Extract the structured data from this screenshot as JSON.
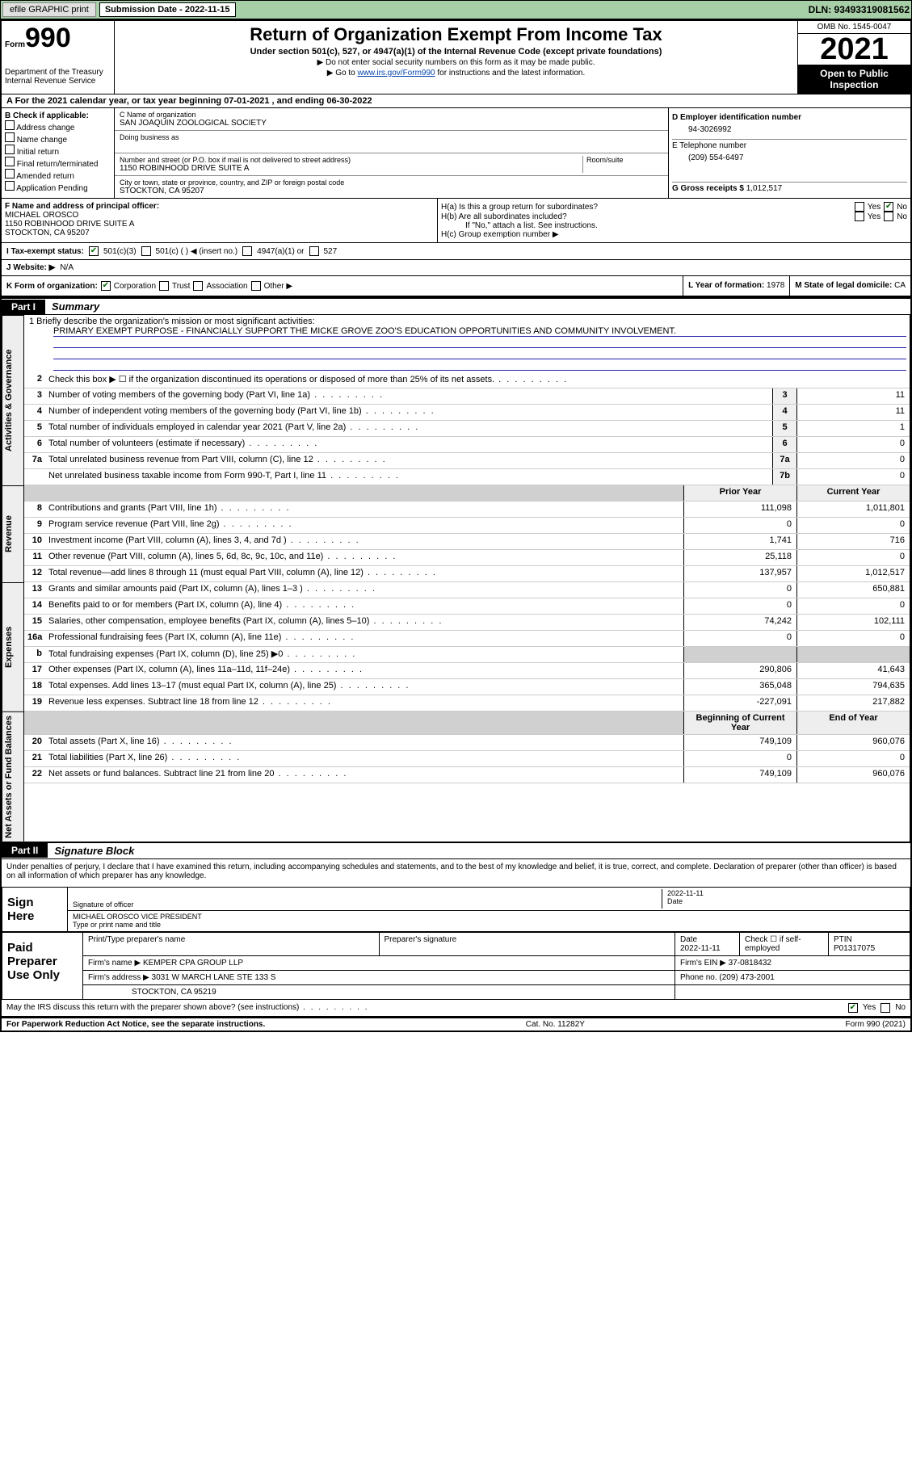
{
  "topbar": {
    "efile": "efile GRAPHIC print",
    "submission_label": "Submission Date - 2022-11-15",
    "dln_label": "DLN: 93493319081562"
  },
  "header": {
    "form_prefix": "Form",
    "form_number": "990",
    "dept": "Department of the Treasury",
    "irs": "Internal Revenue Service",
    "title": "Return of Organization Exempt From Income Tax",
    "subtitle": "Under section 501(c), 527, or 4947(a)(1) of the Internal Revenue Code (except private foundations)",
    "note1": "▶ Do not enter social security numbers on this form as it may be made public.",
    "note2_pre": "▶ Go to ",
    "note2_link": "www.irs.gov/Form990",
    "note2_post": " for instructions and the latest information.",
    "omb": "OMB No. 1545-0047",
    "year": "2021",
    "inspect": "Open to Public Inspection"
  },
  "period": "A For the 2021 calendar year, or tax year beginning 07-01-2021   , and ending 06-30-2022",
  "section_b": {
    "title": "B Check if applicable:",
    "opts": [
      "Address change",
      "Name change",
      "Initial return",
      "Final return/terminated",
      "Amended return",
      "Application Pending"
    ],
    "c_label": "C Name of organization",
    "org_name": "SAN JOAQUIN ZOOLOGICAL SOCIETY",
    "dba_label": "Doing business as",
    "addr_label": "Number and street (or P.O. box if mail is not delivered to street address)",
    "room_label": "Room/suite",
    "addr": "1150 ROBINHOOD DRIVE SUITE A",
    "city_label": "City or town, state or province, country, and ZIP or foreign postal code",
    "city": "STOCKTON, CA  95207",
    "d_label": "D Employer identification number",
    "ein": "94-3026992",
    "e_label": "E Telephone number",
    "phone": "(209) 554-6497",
    "g_label": "G Gross receipts $",
    "gross": "1,012,517"
  },
  "section_f": {
    "f_label": "F  Name and address of principal officer:",
    "officer_name": "MICHAEL OROSCO",
    "officer_addr1": "1150 ROBINHOOD DRIVE SUITE A",
    "officer_addr2": "STOCKTON, CA  95207",
    "ha": "H(a)  Is this a group return for subordinates?",
    "hb": "H(b)  Are all subordinates included?",
    "hb_note": "If \"No,\" attach a list. See instructions.",
    "hc": "H(c)  Group exemption number ▶",
    "yes": "Yes",
    "no": "No"
  },
  "row_i": {
    "label": "I   Tax-exempt status:",
    "opt1": "501(c)(3)",
    "opt2": "501(c) (   ) ◀ (insert no.)",
    "opt3": "4947(a)(1) or",
    "opt4": "527"
  },
  "row_j": {
    "label": "J   Website: ▶",
    "value": "N/A"
  },
  "row_k": {
    "label": "K Form of organization:",
    "o1": "Corporation",
    "o2": "Trust",
    "o3": "Association",
    "o4": "Other ▶",
    "l_label": "L Year of formation: ",
    "l_val": "1978",
    "m_label": "M State of legal domicile: ",
    "m_val": "CA"
  },
  "part1": {
    "tag": "Part I",
    "label": "Summary"
  },
  "mission": {
    "prompt": "1   Briefly describe the organization's mission or most significant activities:",
    "text": "PRIMARY EXEMPT PURPOSE - FINANCIALLY SUPPORT THE MICKE GROVE ZOO'S EDUCATION OPPORTUNITIES AND COMMUNITY INVOLVEMENT."
  },
  "gov_lines": [
    {
      "n": "2",
      "d": "Check this box ▶ ☐  if the organization discontinued its operations or disposed of more than 25% of its net assets.",
      "k": "",
      "v": ""
    },
    {
      "n": "3",
      "d": "Number of voting members of the governing body (Part VI, line 1a)",
      "k": "3",
      "v": "11"
    },
    {
      "n": "4",
      "d": "Number of independent voting members of the governing body (Part VI, line 1b)",
      "k": "4",
      "v": "11"
    },
    {
      "n": "5",
      "d": "Total number of individuals employed in calendar year 2021 (Part V, line 2a)",
      "k": "5",
      "v": "1"
    },
    {
      "n": "6",
      "d": "Total number of volunteers (estimate if necessary)",
      "k": "6",
      "v": "0"
    },
    {
      "n": "7a",
      "d": "Total unrelated business revenue from Part VIII, column (C), line 12",
      "k": "7a",
      "v": "0"
    },
    {
      "n": "",
      "d": "Net unrelated business taxable income from Form 990-T, Part I, line 11",
      "k": "7b",
      "v": "0"
    }
  ],
  "pc_header": {
    "prior": "Prior Year",
    "curr": "Current Year"
  },
  "rev_lines": [
    {
      "n": "8",
      "d": "Contributions and grants (Part VIII, line 1h)",
      "p": "111,098",
      "c": "1,011,801"
    },
    {
      "n": "9",
      "d": "Program service revenue (Part VIII, line 2g)",
      "p": "0",
      "c": "0"
    },
    {
      "n": "10",
      "d": "Investment income (Part VIII, column (A), lines 3, 4, and 7d )",
      "p": "1,741",
      "c": "716"
    },
    {
      "n": "11",
      "d": "Other revenue (Part VIII, column (A), lines 5, 6d, 8c, 9c, 10c, and 11e)",
      "p": "25,118",
      "c": "0"
    },
    {
      "n": "12",
      "d": "Total revenue—add lines 8 through 11 (must equal Part VIII, column (A), line 12)",
      "p": "137,957",
      "c": "1,012,517"
    }
  ],
  "exp_lines": [
    {
      "n": "13",
      "d": "Grants and similar amounts paid (Part IX, column (A), lines 1–3 )",
      "p": "0",
      "c": "650,881"
    },
    {
      "n": "14",
      "d": "Benefits paid to or for members (Part IX, column (A), line 4)",
      "p": "0",
      "c": "0"
    },
    {
      "n": "15",
      "d": "Salaries, other compensation, employee benefits (Part IX, column (A), lines 5–10)",
      "p": "74,242",
      "c": "102,111"
    },
    {
      "n": "16a",
      "d": "Professional fundraising fees (Part IX, column (A), line 11e)",
      "p": "0",
      "c": "0"
    },
    {
      "n": "b",
      "d": "Total fundraising expenses (Part IX, column (D), line 25) ▶0",
      "p": "",
      "c": "",
      "grey": true
    },
    {
      "n": "17",
      "d": "Other expenses (Part IX, column (A), lines 11a–11d, 11f–24e)",
      "p": "290,806",
      "c": "41,643"
    },
    {
      "n": "18",
      "d": "Total expenses. Add lines 13–17 (must equal Part IX, column (A), line 25)",
      "p": "365,048",
      "c": "794,635"
    },
    {
      "n": "19",
      "d": "Revenue less expenses. Subtract line 18 from line 12",
      "p": "-227,091",
      "c": "217,882"
    }
  ],
  "na_header": {
    "prior": "Beginning of Current Year",
    "curr": "End of Year"
  },
  "na_lines": [
    {
      "n": "20",
      "d": "Total assets (Part X, line 16)",
      "p": "749,109",
      "c": "960,076"
    },
    {
      "n": "21",
      "d": "Total liabilities (Part X, line 26)",
      "p": "0",
      "c": "0"
    },
    {
      "n": "22",
      "d": "Net assets or fund balances. Subtract line 21 from line 20",
      "p": "749,109",
      "c": "960,076"
    }
  ],
  "vtabs": {
    "gov": "Activities & Governance",
    "rev": "Revenue",
    "exp": "Expenses",
    "na": "Net Assets or Fund Balances"
  },
  "part2": {
    "tag": "Part II",
    "label": "Signature Block"
  },
  "penalties": "Under penalties of perjury, I declare that I have examined this return, including accompanying schedules and statements, and to the best of my knowledge and belief, it is true, correct, and complete. Declaration of preparer (other than officer) is based on all information of which preparer has any knowledge.",
  "sign": {
    "here": "Sign Here",
    "sig_label": "Signature of officer",
    "date_label": "Date",
    "date": "2022-11-11",
    "name": "MICHAEL OROSCO VICE PRESIDENT",
    "name_label": "Type or print name and title"
  },
  "paid": {
    "label": "Paid Preparer Use Only",
    "h1": "Print/Type preparer's name",
    "h2": "Preparer's signature",
    "h3": "Date",
    "h3v": "2022-11-11",
    "h4": "Check ☐ if self-employed",
    "h5": "PTIN",
    "h5v": "P01317075",
    "firm_label": "Firm's name    ▶",
    "firm": "KEMPER CPA GROUP LLP",
    "ein_label": "Firm's EIN ▶",
    "ein": "37-0818432",
    "addr_label": "Firm's address ▶",
    "addr1": "3031 W MARCH LANE STE 133 S",
    "addr2": "STOCKTON, CA  95219",
    "phone_label": "Phone no.",
    "phone": "(209) 473-2001"
  },
  "discuss": {
    "q": "May the IRS discuss this return with the preparer shown above? (see instructions)",
    "yes": "Yes",
    "no": "No"
  },
  "footer": {
    "pra": "For Paperwork Reduction Act Notice, see the separate instructions.",
    "cat": "Cat. No. 11282Y",
    "form": "Form 990 (2021)"
  },
  "colors": {
    "green_bg": "#a7cfa7",
    "link": "#0645ad",
    "check": "#006600"
  }
}
